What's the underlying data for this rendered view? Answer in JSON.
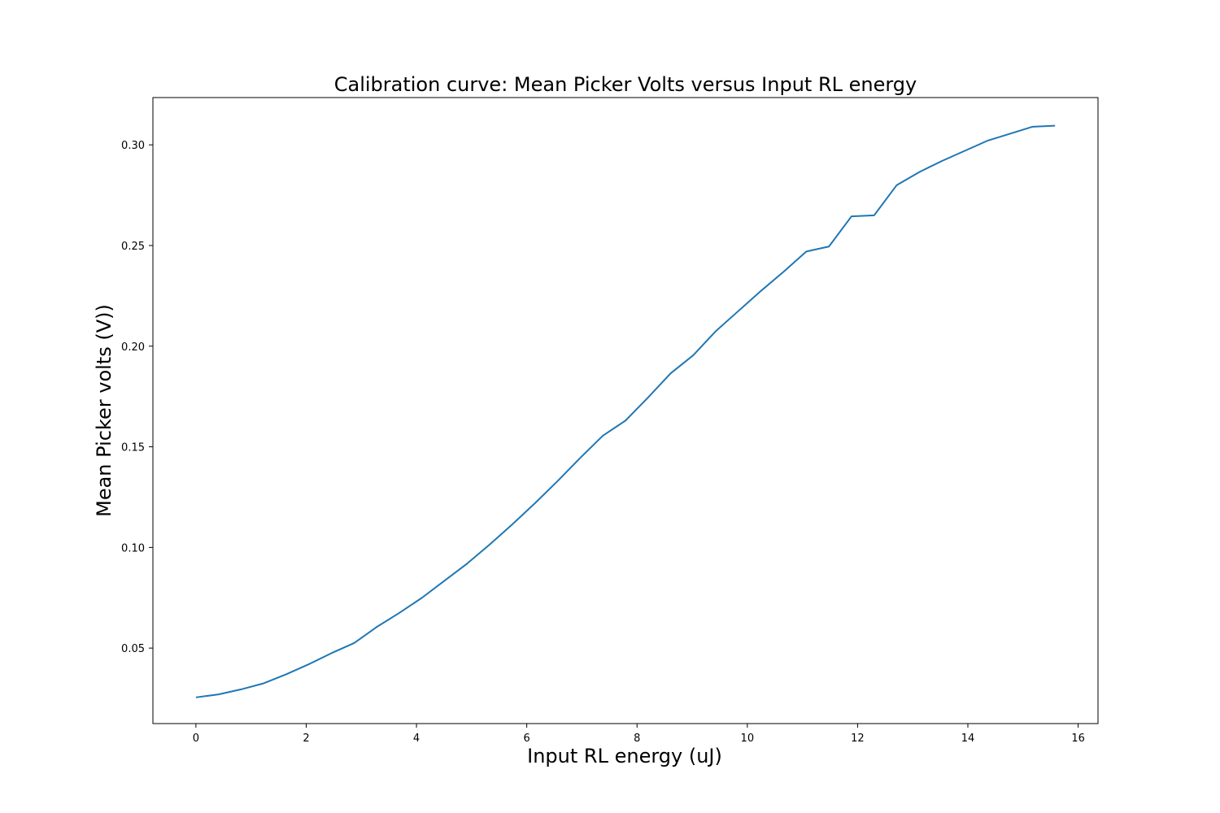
{
  "chart_data": {
    "type": "line",
    "title": "Calibration curve: Mean Picker Volts versus Input RL energy",
    "xlabel": "Input RL energy (uJ)",
    "ylabel": "Mean Picker volts (V))",
    "xlim": [
      -0.78,
      16.36
    ],
    "ylim": [
      0.0125,
      0.3235
    ],
    "x_ticks": [
      0,
      2,
      4,
      6,
      8,
      10,
      12,
      14,
      16
    ],
    "x_tick_labels": [
      "0",
      "2",
      "4",
      "6",
      "8",
      "10",
      "12",
      "14",
      "16"
    ],
    "y_ticks": [
      0.05,
      0.1,
      0.15,
      0.2,
      0.25,
      0.3
    ],
    "y_tick_labels": [
      "0.05",
      "0.10",
      "0.15",
      "0.20",
      "0.25",
      "0.30"
    ],
    "grid": false,
    "line_color": "#1f77b4",
    "series": [
      {
        "x": [
          0.0,
          0.41,
          0.82,
          1.23,
          1.64,
          2.05,
          2.46,
          2.87,
          3.28,
          3.69,
          4.1,
          4.51,
          4.92,
          5.33,
          5.74,
          6.15,
          6.56,
          6.97,
          7.38,
          7.79,
          8.2,
          8.61,
          9.02,
          9.43,
          9.84,
          10.25,
          10.66,
          11.07,
          11.48,
          11.89,
          12.3,
          12.71,
          13.12,
          13.53,
          13.94,
          14.35,
          14.76,
          15.17,
          15.58
        ],
        "values": [
          0.0255,
          0.027,
          0.0295,
          0.0325,
          0.037,
          0.042,
          0.0475,
          0.0525,
          0.0605,
          0.0675,
          0.075,
          0.0835,
          0.092,
          0.1015,
          0.1115,
          0.122,
          0.133,
          0.1445,
          0.1555,
          0.163,
          0.1745,
          0.1865,
          0.1955,
          0.2075,
          0.2175,
          0.2275,
          0.237,
          0.247,
          0.2495,
          0.2645,
          0.265,
          0.28,
          0.2865,
          0.292,
          0.297,
          0.302,
          0.3055,
          0.309,
          0.3095
        ]
      }
    ]
  }
}
